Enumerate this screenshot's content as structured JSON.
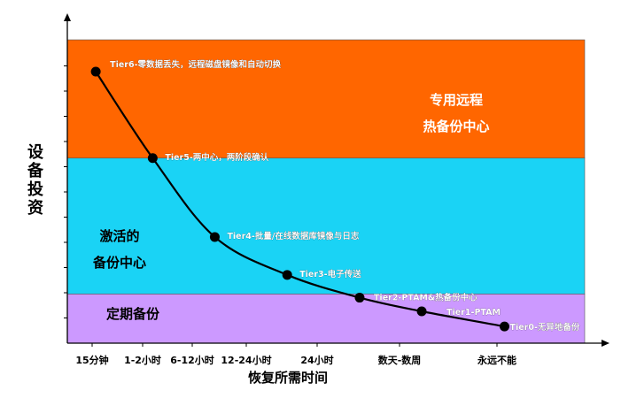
{
  "chart_data": {
    "type": "line",
    "xlabel": "恢复所需时间",
    "ylabel": "设备投资",
    "categories": [
      "15分钟",
      "1-2小时",
      "6-12小时",
      "12-24小时",
      "24小时",
      "数天-数周",
      "永远不能"
    ],
    "bands": [
      {
        "name": "专用远程热备份中心",
        "label_lines": [
          "专用远程",
          "热备份中心"
        ],
        "color": "#ff6600",
        "label_color": "#ffffff",
        "from": 0.61,
        "to": 1.0
      },
      {
        "name": "激活的备份中心",
        "label_lines": [
          "激活的",
          "备份中心"
        ],
        "color": "#1ad3f5",
        "label_color": "#000000",
        "from": 0.162,
        "to": 0.61
      },
      {
        "name": "定期备份",
        "label_lines": [
          "定期备份"
        ],
        "color": "#cc99ff",
        "label_color": "#000000",
        "from": 0.0,
        "to": 0.162
      }
    ],
    "points": [
      {
        "x": 0.055,
        "y": 0.895,
        "label": "Tier6-零数据丢失，远程磁盘镜像和自动切换"
      },
      {
        "x": 0.165,
        "y": 0.61,
        "label": "Tier5-两中心，两阶段确认"
      },
      {
        "x": 0.285,
        "y": 0.35,
        "label": "Tier4-批量/在线数据库镜像与日志"
      },
      {
        "x": 0.425,
        "y": 0.225,
        "label": "Tier3-电子传送"
      },
      {
        "x": 0.565,
        "y": 0.15,
        "label": "Tier2-PTAM&热备份中心"
      },
      {
        "x": 0.685,
        "y": 0.105,
        "label": "Tier1-PTAM"
      },
      {
        "x": 0.845,
        "y": 0.055,
        "label": "Tier0-无异地备份"
      }
    ],
    "ylim": [
      0,
      1
    ],
    "xlim": [
      0,
      1
    ],
    "grid": false,
    "colors": {
      "curve": "#000000",
      "point": "#000000",
      "tier_label": "#ffffff",
      "axis": "#000000"
    }
  }
}
